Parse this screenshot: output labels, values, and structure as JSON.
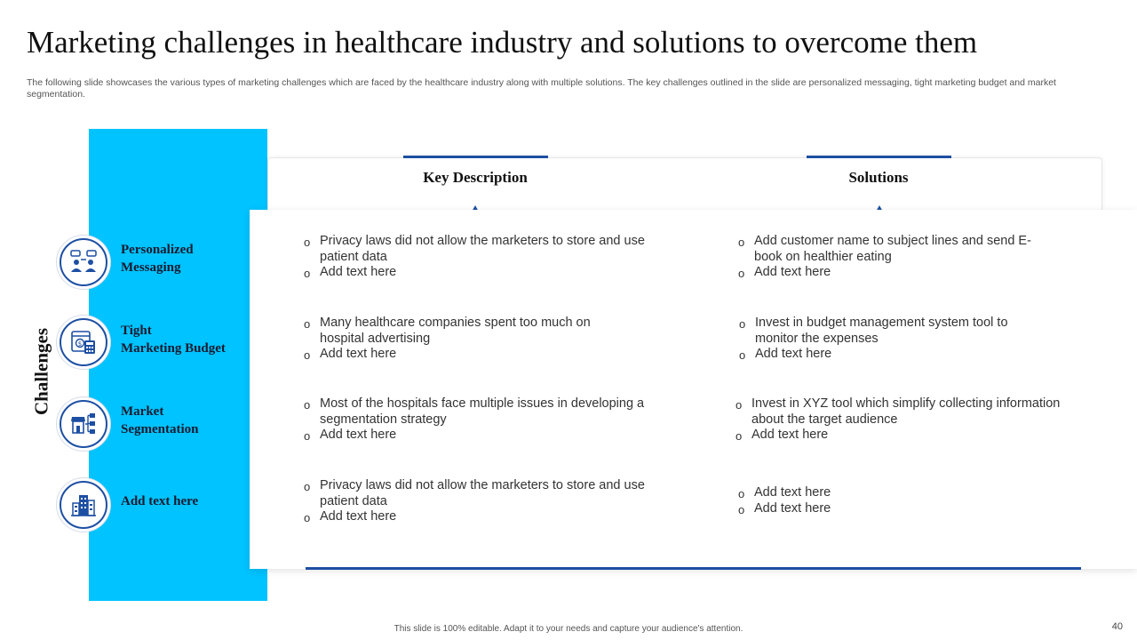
{
  "title": "Marketing challenges in healthcare industry and solutions to overcome them",
  "subtitle": "The following slide showcases the various types of marketing challenges which are faced by the healthcare industry along with multiple solutions. The key challenges outlined in the slide are personalized messaging, tight marketing budget and market segmentation.",
  "vertical_label": "Challenges",
  "columns": {
    "description": "Key Description",
    "solutions": "Solutions"
  },
  "accent_colors": {
    "strip": "#00c3ff",
    "primary": "#1d4fa3"
  },
  "rows": [
    {
      "label_line1": "Personalized",
      "label_line2": "Messaging",
      "icon": "team-communication-icon",
      "description": [
        "Privacy laws did not allow the marketers to store and use patient data",
        "Add text here"
      ],
      "solutions": [
        "Add customer name to subject lines and send E-book on healthier eating",
        "Add text here"
      ]
    },
    {
      "label_line1": "Tight",
      "label_line2": "Marketing Budget",
      "icon": "budget-calculator-icon",
      "description": [
        "Many healthcare companies spent too much on hospital advertising",
        "Add text here"
      ],
      "solutions": [
        "Invest in budget management system tool to monitor the expenses",
        "Add text here"
      ]
    },
    {
      "label_line1": "Market",
      "label_line2": "Segmentation",
      "icon": "store-segmentation-icon",
      "description": [
        "Most of the hospitals face multiple issues in developing a segmentation strategy",
        "Add text here"
      ],
      "solutions": [
        "Invest in XYZ tool which simplify collecting information about the target audience",
        "Add text here"
      ]
    },
    {
      "label_line1": "Add text here",
      "label_line2": "",
      "icon": "buildings-icon",
      "description": [
        "Privacy laws did not allow the marketers to store and use patient data",
        "Add text here"
      ],
      "solutions": [
        "Add text here",
        "Add text here"
      ]
    }
  ],
  "footer": "This slide is 100% editable. Adapt it to your needs and capture your audience's attention.",
  "page_number": "40"
}
